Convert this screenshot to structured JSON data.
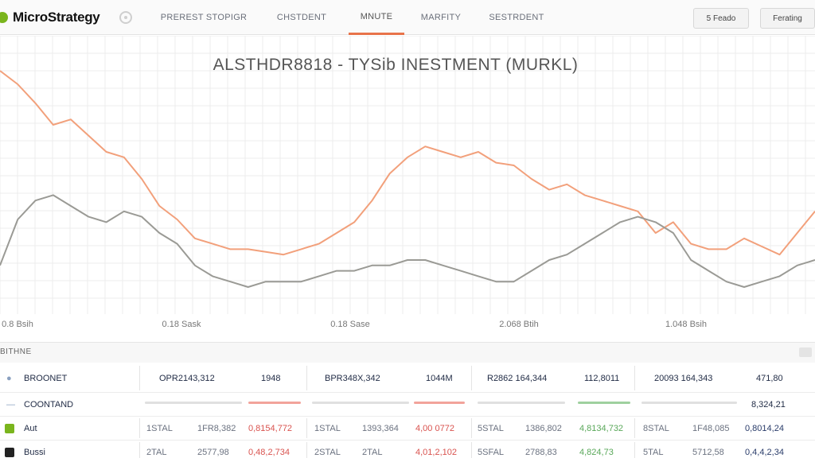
{
  "app": {
    "logo_text": "MicroStrategy"
  },
  "nav": {
    "tabs": [
      "PREREST STOPIGR",
      "CHSTDENT",
      "MNUTE",
      "MARFITY",
      "SESTRDENT"
    ],
    "active_index": 2
  },
  "toolbar": {
    "btn1": "5 Feado",
    "btn2": "Ferating"
  },
  "chart": {
    "title": "ALSTHDR8818 - TYSib  INESTMENT (MURKL)",
    "x_labels": [
      "0.8 Bsih",
      "0.18 Sask",
      "0.18 Sase",
      "2.068 Btih",
      "1.048 Bsih"
    ],
    "colors": {
      "series1": "#f2a07b",
      "series2": "#9a9a95"
    }
  },
  "chart_data": {
    "type": "line",
    "title": "ALSTHDR8818 - TYSib  INESTMENT (MURKL)",
    "x_tick_labels": [
      "0.8 Bsih",
      "0.18 Sask",
      "0.18 Sase",
      "2.068 Btih",
      "1.048 Bsih"
    ],
    "ylim": [
      0,
      100
    ],
    "grid": true,
    "series": [
      {
        "values": [
          90,
          85,
          78,
          70,
          72,
          66,
          60,
          58,
          50,
          40,
          35,
          28,
          26,
          24,
          24,
          23,
          22,
          24,
          26,
          30,
          34,
          42,
          52,
          58,
          62,
          60,
          58,
          60,
          56,
          55,
          50,
          46,
          48,
          44,
          42,
          40,
          38,
          30,
          34,
          26,
          24,
          24,
          28,
          25,
          22,
          30,
          38
        ]
      },
      {
        "values": [
          18,
          35,
          42,
          44,
          40,
          36,
          34,
          38,
          36,
          30,
          26,
          18,
          14,
          12,
          10,
          12,
          12,
          12,
          14,
          16,
          16,
          18,
          18,
          20,
          20,
          18,
          16,
          14,
          12,
          12,
          16,
          20,
          22,
          26,
          30,
          34,
          36,
          34,
          30,
          20,
          16,
          12,
          10,
          12,
          14,
          18,
          20
        ]
      }
    ]
  },
  "table": {
    "header_label": "BITHNE",
    "rows": [
      {
        "label": "BROONET",
        "values": [
          "OPR2143,312",
          "1948",
          "BPR348X,342",
          "1044M",
          "R2862 164,344",
          "112,8011",
          "20093 164,343",
          "471,80"
        ]
      },
      {
        "label": "COONTAND",
        "values": [
          "",
          "",
          "",
          "",
          "",
          "",
          "",
          "8,324,21"
        ]
      },
      {
        "label": "Aut",
        "values": [
          "1STAL",
          "1FR8,382",
          "0,8154,772",
          "1STAL",
          "1393,364",
          "4,00 0772",
          "5STAL",
          "1386,802",
          "4,8134,732",
          "8STAL",
          "1F48,085",
          "0,8014,24"
        ]
      },
      {
        "label": "Bussi",
        "values": [
          "2TAL",
          "2577,98",
          "0,48,2,734",
          "2STAL",
          "2TAL",
          "4,01,2,102",
          "5SFAL",
          "2788,83",
          "4,824,73",
          "5TAL",
          "5712,58",
          "0,4,4,2,34"
        ]
      }
    ],
    "swatch_colors": [
      "#7ab51d",
      "#222222"
    ]
  }
}
